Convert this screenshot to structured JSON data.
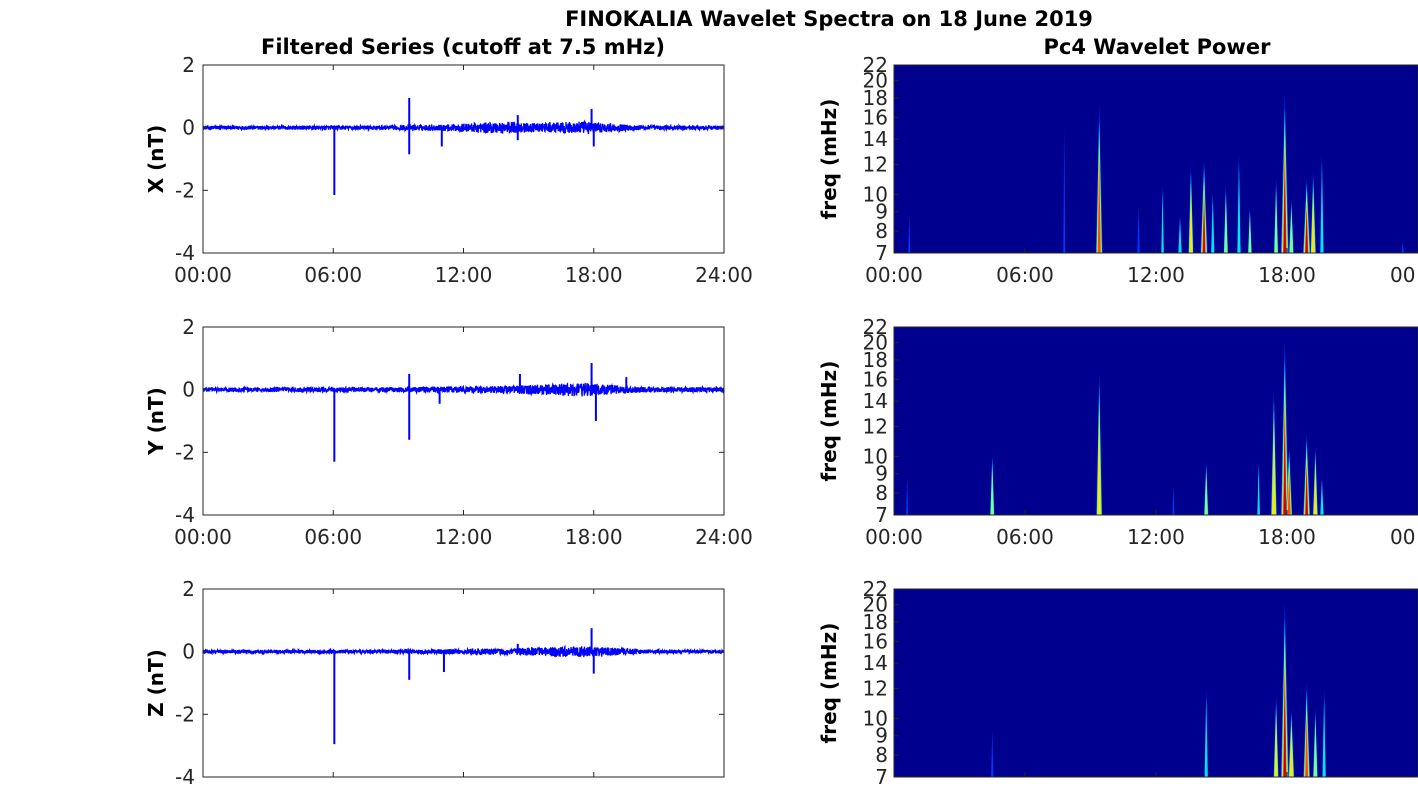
{
  "figure": {
    "title": "FINOKALIA Wavelet Spectra on 18 June 2019",
    "left_title": "Filtered Series (cutoff at 7.5 mHz)",
    "right_title": "Pc4 Wavelet Power"
  },
  "colors": {
    "series": "#0000ff",
    "spectrum_bg": "#00008f"
  },
  "chart_data": [
    {
      "type": "line",
      "component": "X",
      "ylabel": "X (nT)",
      "ylim": [
        -4,
        2
      ],
      "yticks": [
        "2",
        "0",
        "-2",
        "-4"
      ],
      "xlim": [
        0,
        24
      ],
      "xticks": [
        "00:00",
        "06:00",
        "12:00",
        "18:00",
        "24:00"
      ],
      "noise": [
        [
          0,
          0.06
        ],
        [
          8,
          0.07
        ],
        [
          11,
          0.1
        ],
        [
          14,
          0.2
        ],
        [
          15.2,
          0.14
        ],
        [
          17.5,
          0.2
        ],
        [
          19,
          0.12
        ],
        [
          20.5,
          0.07
        ],
        [
          24,
          0.07
        ]
      ],
      "spikes": [
        [
          6.05,
          -2.15
        ],
        [
          9.5,
          0.95
        ],
        [
          9.5,
          -0.85
        ],
        [
          11,
          -0.6
        ],
        [
          14.5,
          0.4
        ],
        [
          14.5,
          -0.4
        ],
        [
          17.9,
          0.6
        ],
        [
          18,
          -0.6
        ]
      ]
    },
    {
      "type": "line",
      "component": "Y",
      "ylabel": "Y (nT)",
      "ylim": [
        -4,
        2
      ],
      "yticks": [
        "2",
        "0",
        "-2",
        "-4"
      ],
      "xlim": [
        0,
        24
      ],
      "xticks": [
        "00:00",
        "06:00",
        "12:00",
        "18:00",
        "24:00"
      ],
      "noise": [
        [
          0,
          0.07
        ],
        [
          8,
          0.08
        ],
        [
          11,
          0.1
        ],
        [
          14,
          0.12
        ],
        [
          17.5,
          0.22
        ],
        [
          19,
          0.14
        ],
        [
          20.5,
          0.08
        ],
        [
          24,
          0.08
        ]
      ],
      "spikes": [
        [
          6.05,
          -2.3
        ],
        [
          9.5,
          0.5
        ],
        [
          9.5,
          -1.6
        ],
        [
          10.9,
          -0.45
        ],
        [
          14.6,
          0.5
        ],
        [
          17.9,
          0.85
        ],
        [
          18.1,
          -1.0
        ],
        [
          19.5,
          0.4
        ]
      ]
    },
    {
      "type": "line",
      "component": "Z",
      "ylabel": "Z (nT)",
      "ylim": [
        -4,
        2
      ],
      "yticks": [
        "2",
        "0",
        "-2",
        "-4"
      ],
      "xlim": [
        0,
        24
      ],
      "xticks": [],
      "noise": [
        [
          0,
          0.06
        ],
        [
          8,
          0.06
        ],
        [
          11,
          0.08
        ],
        [
          14,
          0.1
        ],
        [
          17.5,
          0.18
        ],
        [
          19,
          0.12
        ],
        [
          20.5,
          0.06
        ],
        [
          24,
          0.06
        ]
      ],
      "spikes": [
        [
          6.05,
          -2.95
        ],
        [
          9.5,
          -0.9
        ],
        [
          11.1,
          -0.65
        ],
        [
          14.5,
          0.25
        ],
        [
          17.9,
          0.75
        ],
        [
          18,
          -0.7
        ]
      ]
    },
    {
      "type": "heatmap",
      "ylabel": "freq (mHz)",
      "ylim": [
        7,
        22
      ],
      "yticks": [
        7,
        8,
        9,
        10,
        12,
        14,
        16,
        18,
        20,
        22
      ],
      "xlim": [
        0,
        24
      ],
      "xticks": [
        "00:00",
        "06:00",
        "12:00",
        "18:00",
        "00"
      ],
      "bursts": [
        [
          0.7,
          9,
          0.25
        ],
        [
          7.8,
          16,
          0.25
        ],
        [
          9.4,
          18.5,
          0.85
        ],
        [
          11.2,
          9.5,
          0.3
        ],
        [
          12.3,
          11,
          0.35
        ],
        [
          13.1,
          9,
          0.45
        ],
        [
          13.6,
          12.5,
          0.65
        ],
        [
          14.2,
          13,
          0.9
        ],
        [
          14.6,
          10.5,
          0.45
        ],
        [
          15.2,
          11,
          0.55
        ],
        [
          15.8,
          13.5,
          0.45
        ],
        [
          16.3,
          9.5,
          0.5
        ],
        [
          17.5,
          11.5,
          0.55
        ],
        [
          17.9,
          20,
          1.0
        ],
        [
          18.2,
          10,
          0.6
        ],
        [
          18.9,
          11.5,
          0.95
        ],
        [
          19.2,
          12,
          0.7
        ],
        [
          19.6,
          13.5,
          0.45
        ],
        [
          23.3,
          7.5,
          0.25
        ]
      ]
    },
    {
      "type": "heatmap",
      "ylabel": "freq (mHz)",
      "ylim": [
        7,
        22
      ],
      "yticks": [
        7,
        8,
        9,
        10,
        12,
        14,
        16,
        18,
        20,
        22
      ],
      "xlim": [
        0,
        24
      ],
      "xticks": [
        "00:00",
        "06:00",
        "12:00",
        "18:00",
        "00"
      ],
      "bursts": [
        [
          0.6,
          9,
          0.25
        ],
        [
          4.5,
          10.5,
          0.55
        ],
        [
          9.4,
          18,
          0.75
        ],
        [
          12.8,
          8.5,
          0.25
        ],
        [
          14.3,
          10,
          0.55
        ],
        [
          16.7,
          10,
          0.35
        ],
        [
          17.4,
          16,
          0.75
        ],
        [
          17.9,
          22,
          1.0
        ],
        [
          18.1,
          11,
          0.8
        ],
        [
          18.9,
          12,
          0.9
        ],
        [
          19.3,
          11,
          0.65
        ],
        [
          19.6,
          9,
          0.45
        ]
      ]
    },
    {
      "type": "heatmap",
      "ylabel": "freq (mHz)",
      "ylim": [
        7,
        22
      ],
      "yticks": [
        7,
        8,
        9,
        10,
        12,
        14,
        16,
        18,
        20,
        22
      ],
      "xlim": [
        0,
        24
      ],
      "xticks": [],
      "bursts": [
        [
          4.5,
          9.5,
          0.3
        ],
        [
          14.3,
          12.5,
          0.45
        ],
        [
          17.5,
          12,
          0.65
        ],
        [
          17.9,
          22,
          1.0
        ],
        [
          18.2,
          11,
          0.75
        ],
        [
          18.9,
          13,
          0.85
        ],
        [
          19.3,
          11,
          0.6
        ],
        [
          19.7,
          12.5,
          0.45
        ]
      ]
    }
  ]
}
